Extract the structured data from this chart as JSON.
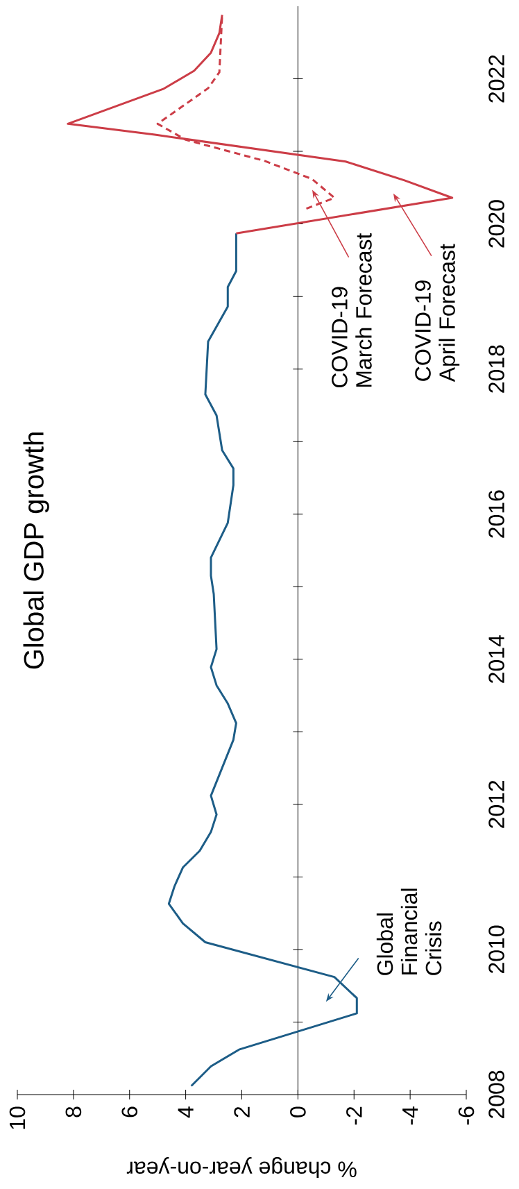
{
  "chart_data": {
    "type": "line",
    "title": "Global GDP growth",
    "xlabel": "% change year-on-year",
    "xlim": [
      10,
      -6
    ],
    "ylim": [
      2008,
      2023
    ],
    "xticks": [
      10,
      8,
      6,
      4,
      2,
      0,
      -2,
      -4,
      -6
    ],
    "yticks": [
      2008,
      {
        "value": 2009,
        "label": null
      },
      2010,
      {
        "value": 2011,
        "label": null
      },
      2012,
      {
        "value": 2013,
        "label": null
      },
      2014,
      {
        "value": 2015,
        "label": null
      },
      2016,
      {
        "value": 2017,
        "label": null
      },
      2018,
      {
        "value": 2019,
        "label": null
      },
      2020,
      {
        "value": 2021,
        "label": null
      },
      2022
    ],
    "marker": "none",
    "series": [
      {
        "color": "#1d5d87",
        "line_style": "solid",
        "x": [
          3.8,
          3.1,
          2.1,
          -2.1,
          -2.1,
          -1.3,
          3.3,
          4.1,
          4.6,
          4.4,
          4.1,
          3.5,
          3.1,
          2.9,
          3.1,
          2.3,
          2.2,
          2.5,
          2.9,
          3.1,
          2.9,
          3.0,
          3.1,
          3.1,
          2.5,
          2.3,
          2.3,
          2.7,
          2.9,
          3.3,
          3.2,
          2.5,
          2.5,
          2.2,
          2.2
        ],
        "values": [
          2008.12,
          2008.39,
          2008.62,
          2009.12,
          2009.33,
          2009.62,
          2010.1,
          2010.36,
          2010.63,
          2010.87,
          2011.13,
          2011.36,
          2011.62,
          2011.86,
          2012.12,
          2012.89,
          2013.12,
          2013.39,
          2013.64,
          2013.89,
          2014.14,
          2014.9,
          2015.15,
          2015.4,
          2015.88,
          2016.4,
          2016.63,
          2016.88,
          2017.36,
          2017.65,
          2018.38,
          2018.86,
          2019.13,
          2019.35,
          2019.87
        ]
      },
      {
        "color": "#cc3d47",
        "line_style": "solid",
        "x": [
          2.2,
          -5.5,
          -3.8,
          -1.7,
          5.1,
          8.2,
          4.8,
          3.7,
          3.1,
          2.8,
          2.7
        ],
        "values": [
          2019.87,
          2020.36,
          2020.6,
          2020.86,
          2021.23,
          2021.38,
          2021.86,
          2022.11,
          2022.36,
          2022.63,
          2022.88
        ]
      },
      {
        "color": "#cc3d47",
        "line_style": "dashed",
        "x": [
          -0.3,
          -1.3,
          -0.5,
          1.2,
          4.0,
          5.0,
          3.2,
          2.8,
          2.7
        ],
        "values": [
          2020.21,
          2020.36,
          2020.62,
          2020.87,
          2021.16,
          2021.38,
          2021.87,
          2022.09,
          2022.88
        ]
      }
    ],
    "annotations": [
      "Global Financial Crisis",
      "COVID-19 March Forecast",
      "COVID-19 April Forecast"
    ]
  }
}
